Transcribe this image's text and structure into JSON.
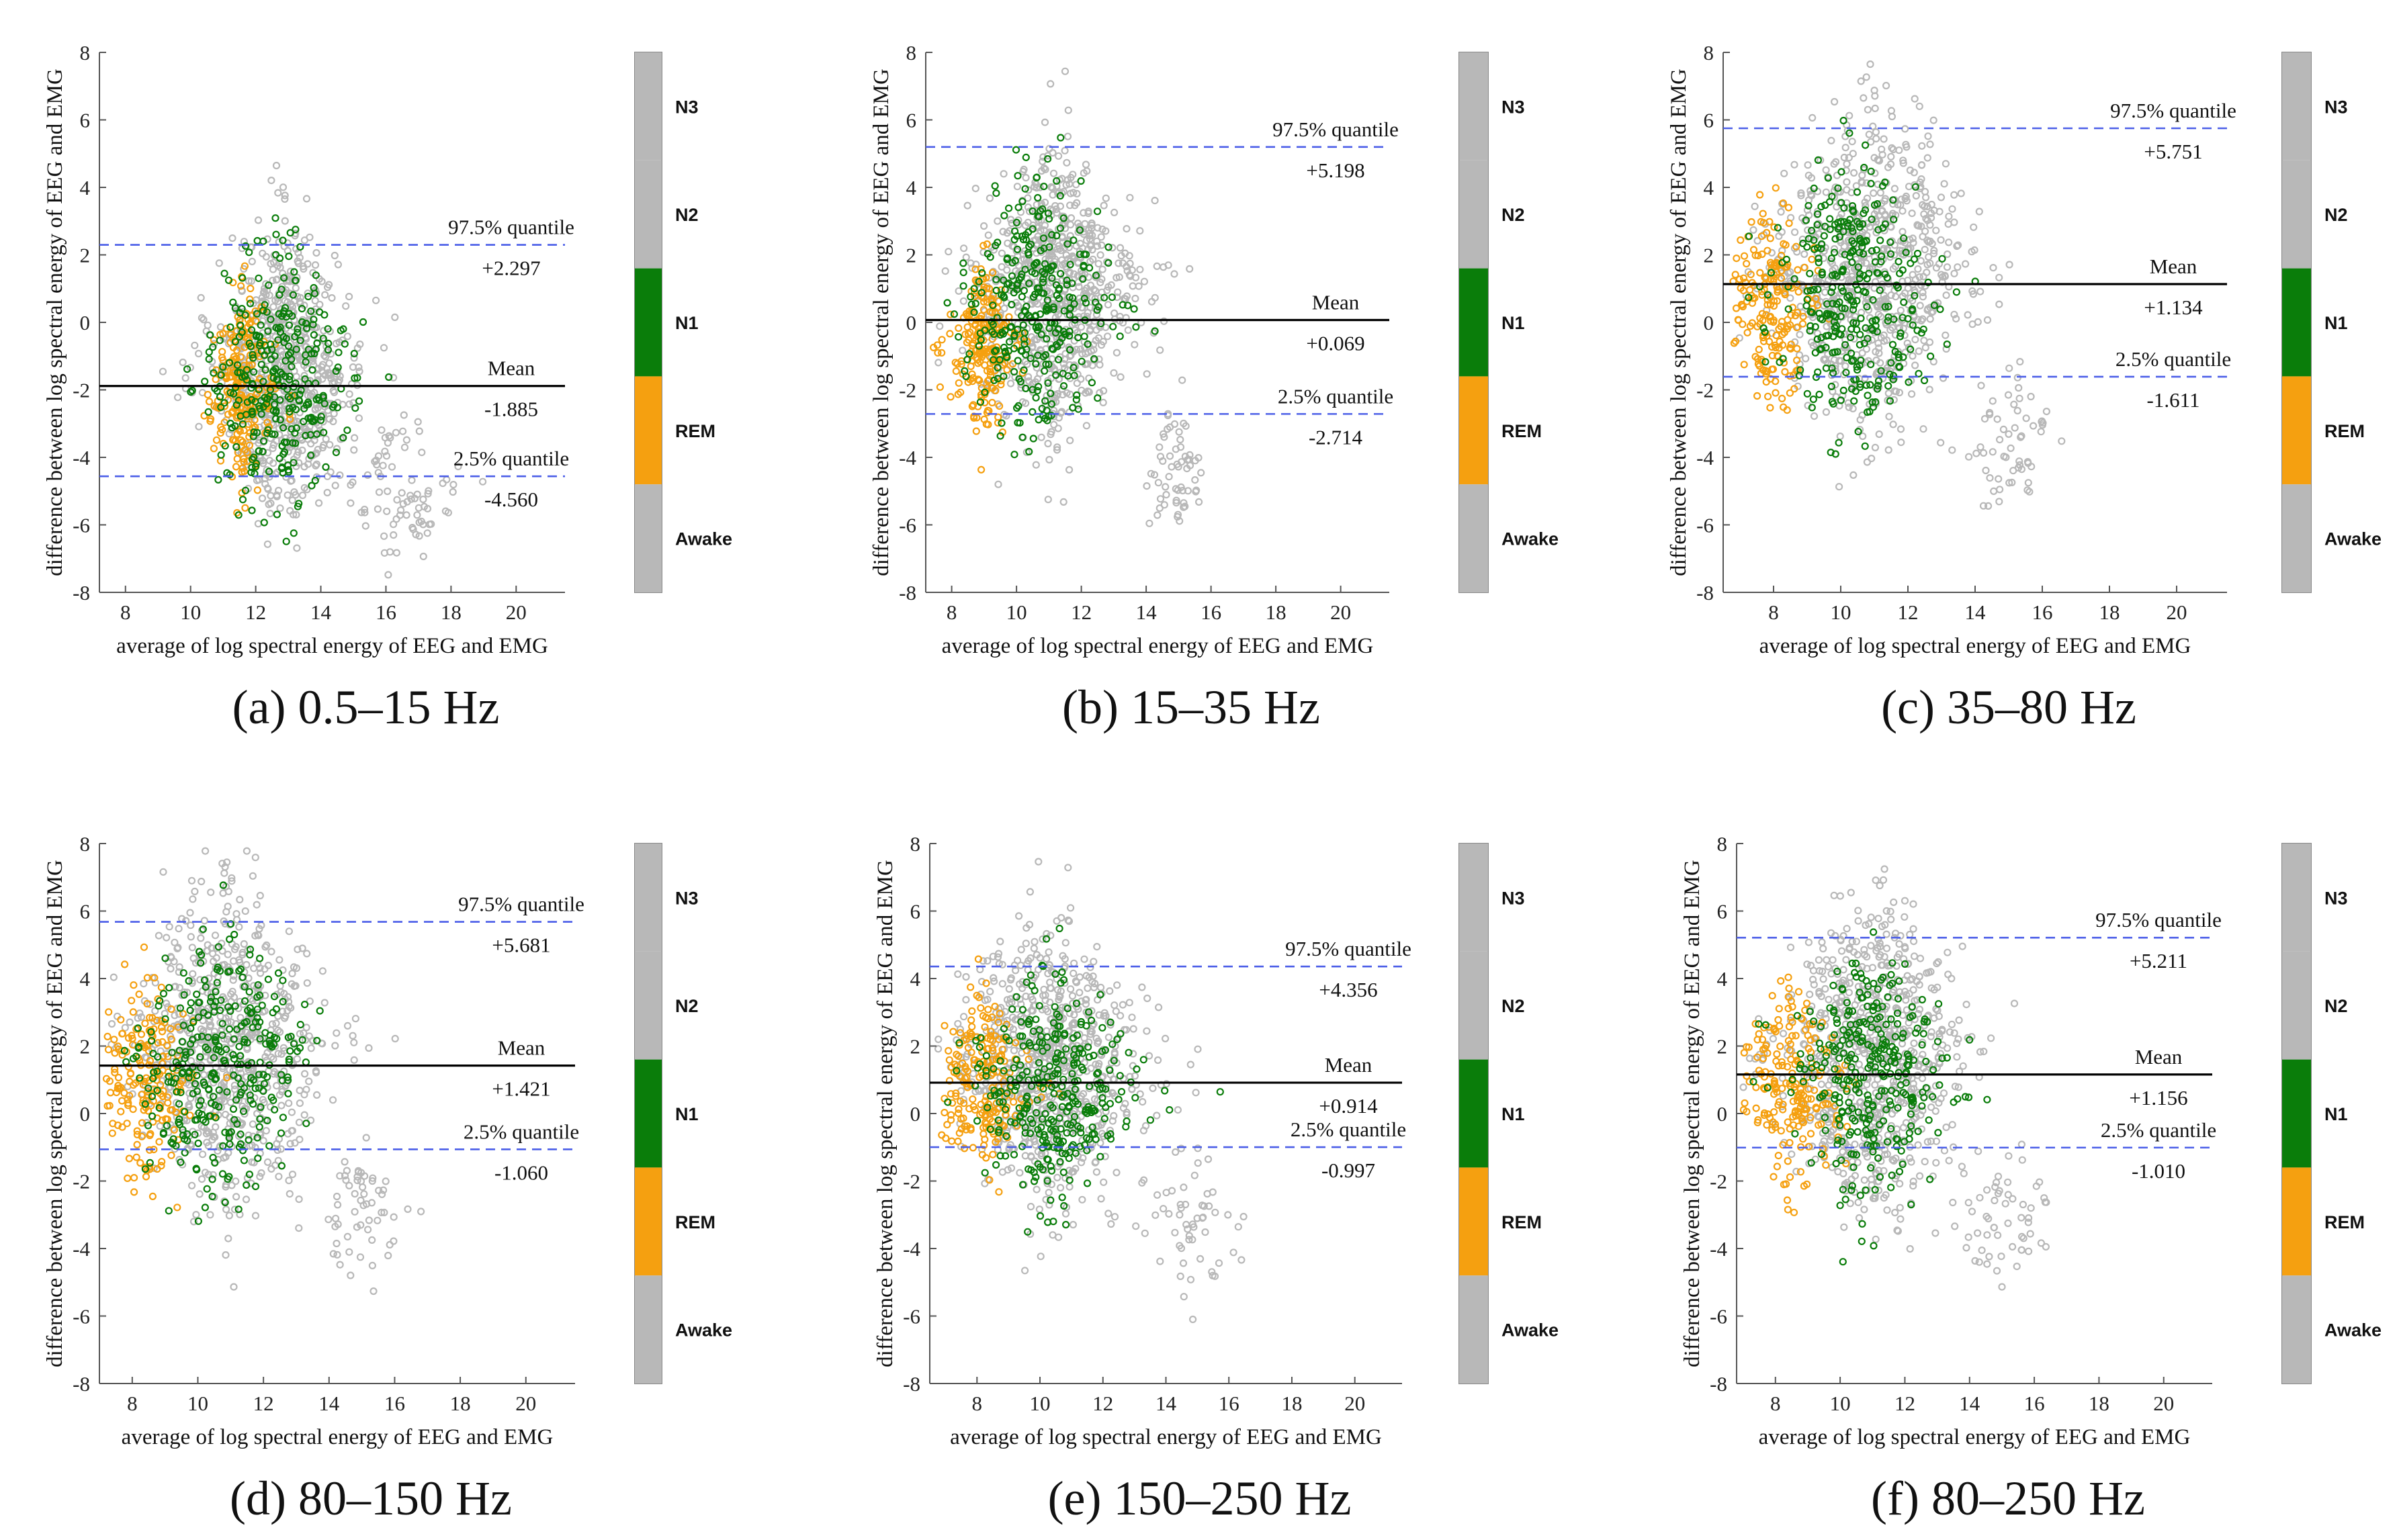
{
  "figure": {
    "colors": {
      "Awake": "#b8b8b8",
      "N3": "#b8b8b8",
      "N2": "#b8b8b8",
      "N1": "#0a7d0a",
      "REM": "#f5a010",
      "mean_line": "#000000",
      "quantile_line": "#4b5ee8",
      "axis": "#555555"
    }
  },
  "chart_data": [
    {
      "type": "scatter",
      "panel_id": "a",
      "caption": "(a) 0.5–15 Hz",
      "xlabel": "average of log spectral energy of EEG and EMG",
      "ylabel": "difference between log spectral energy of EEG and EMG",
      "xlim": [
        7.2,
        21.5
      ],
      "ylim": [
        -8,
        8
      ],
      "xticks": [
        "8",
        "10",
        "12",
        "14",
        "16",
        "18",
        "20"
      ],
      "yticks": [
        "-8",
        "-6",
        "-4",
        "-2",
        "0",
        "2",
        "4",
        "6",
        "8"
      ],
      "mean": {
        "label": "Mean",
        "value": -1.885,
        "value_text": "-1.885"
      },
      "upper": {
        "label": "97.5% quantile",
        "value": 2.297,
        "value_text": "+2.297"
      },
      "lower": {
        "label": "2.5% quantile",
        "value": -4.56,
        "value_text": "-4.560"
      },
      "colorbar": [
        "N3",
        "N2",
        "N1",
        "REM",
        "Awake"
      ],
      "clusters": [
        {
          "stage": "Awake",
          "n": 700,
          "cx": 12.9,
          "cy": -1.4,
          "sx": 1.3,
          "sy": 2.0
        },
        {
          "stage": "Awake",
          "n": 80,
          "cx": 16.6,
          "cy": -5.0,
          "sx": 0.9,
          "sy": 1.0
        },
        {
          "stage": "REM",
          "n": 220,
          "cx": 11.6,
          "cy": -2.0,
          "sx": 0.6,
          "sy": 1.3
        },
        {
          "stage": "N1",
          "n": 320,
          "cx": 12.7,
          "cy": -1.6,
          "sx": 1.3,
          "sy": 1.8
        }
      ]
    },
    {
      "type": "scatter",
      "panel_id": "b",
      "caption": "(b) 15–35 Hz",
      "xlabel": "average of log spectral energy of EEG and EMG",
      "ylabel": "difference between log spectral energy of EEG and EMG",
      "xlim": [
        7.2,
        21.5
      ],
      "ylim": [
        -8,
        8
      ],
      "xticks": [
        "8",
        "10",
        "12",
        "14",
        "16",
        "18",
        "20"
      ],
      "yticks": [
        "-8",
        "-6",
        "-4",
        "-2",
        "0",
        "2",
        "4",
        "6",
        "8"
      ],
      "mean": {
        "label": "Mean",
        "value": 0.069,
        "value_text": "+0.069"
      },
      "upper": {
        "label": "97.5% quantile",
        "value": 5.198,
        "value_text": "+5.198"
      },
      "lower": {
        "label": "2.5% quantile",
        "value": -2.714,
        "value_text": "-2.714"
      },
      "colorbar": [
        "N3",
        "N2",
        "N1",
        "REM",
        "Awake"
      ],
      "clusters": [
        {
          "stage": "Awake",
          "n": 700,
          "cx": 11.2,
          "cy": 0.8,
          "sx": 1.5,
          "sy": 2.0
        },
        {
          "stage": "Awake",
          "n": 60,
          "cx": 14.9,
          "cy": -4.3,
          "sx": 0.6,
          "sy": 1.0
        },
        {
          "stage": "REM",
          "n": 200,
          "cx": 9.0,
          "cy": -0.8,
          "sx": 0.6,
          "sy": 1.1
        },
        {
          "stage": "N1",
          "n": 320,
          "cx": 10.6,
          "cy": 0.5,
          "sx": 1.3,
          "sy": 1.8
        }
      ]
    },
    {
      "type": "scatter",
      "panel_id": "c",
      "caption": "(c) 35–80 Hz",
      "xlabel": "average of log spectral energy of EEG and EMG",
      "ylabel": "difference between log spectral energy of EEG and EMG",
      "xlim": [
        6.5,
        21.5
      ],
      "ylim": [
        -8,
        8
      ],
      "xticks": [
        "8",
        "10",
        "12",
        "14",
        "16",
        "18",
        "20"
      ],
      "yticks": [
        "-8",
        "-6",
        "-4",
        "-2",
        "0",
        "2",
        "4",
        "6",
        "8"
      ],
      "mean": {
        "label": "Mean",
        "value": 1.134,
        "value_text": "+1.134"
      },
      "upper": {
        "label": "97.5% quantile",
        "value": 5.751,
        "value_text": "+5.751"
      },
      "lower": {
        "label": "2.5% quantile",
        "value": -1.611,
        "value_text": "-1.611"
      },
      "colorbar": [
        "N3",
        "N2",
        "N1",
        "REM",
        "Awake"
      ],
      "clusters": [
        {
          "stage": "Awake",
          "n": 700,
          "cx": 10.8,
          "cy": 1.6,
          "sx": 1.7,
          "sy": 2.2
        },
        {
          "stage": "Awake",
          "n": 60,
          "cx": 15.0,
          "cy": -3.8,
          "sx": 0.9,
          "sy": 1.0
        },
        {
          "stage": "REM",
          "n": 200,
          "cx": 8.0,
          "cy": 0.6,
          "sx": 0.8,
          "sy": 1.3
        },
        {
          "stage": "N1",
          "n": 320,
          "cx": 10.4,
          "cy": 1.0,
          "sx": 1.4,
          "sy": 1.8
        }
      ]
    },
    {
      "type": "scatter",
      "panel_id": "d",
      "caption": "(d) 80–150 Hz",
      "xlabel": "average of log spectral energy of EEG and EMG",
      "ylabel": "difference between log spectral energy of EEG and EMG",
      "xlim": [
        7.0,
        21.5
      ],
      "ylim": [
        -8,
        8
      ],
      "xticks": [
        "8",
        "10",
        "12",
        "14",
        "16",
        "18",
        "20"
      ],
      "yticks": [
        "-8",
        "-6",
        "-4",
        "-2",
        "0",
        "2",
        "4",
        "6",
        "8"
      ],
      "mean": {
        "label": "Mean",
        "value": 1.421,
        "value_text": "+1.421"
      },
      "upper": {
        "label": "97.5% quantile",
        "value": 5.681,
        "value_text": "+5.681"
      },
      "lower": {
        "label": "2.5% quantile",
        "value": -1.06,
        "value_text": "-1.060"
      },
      "colorbar": [
        "N3",
        "N2",
        "N1",
        "REM",
        "Awake"
      ],
      "clusters": [
        {
          "stage": "Awake",
          "n": 700,
          "cx": 10.9,
          "cy": 2.0,
          "sx": 1.7,
          "sy": 2.1
        },
        {
          "stage": "Awake",
          "n": 60,
          "cx": 15.0,
          "cy": -3.2,
          "sx": 0.8,
          "sy": 1.0
        },
        {
          "stage": "REM",
          "n": 200,
          "cx": 8.4,
          "cy": 0.9,
          "sx": 0.9,
          "sy": 1.4
        },
        {
          "stage": "N1",
          "n": 320,
          "cx": 10.7,
          "cy": 1.4,
          "sx": 1.5,
          "sy": 1.8
        }
      ]
    },
    {
      "type": "scatter",
      "panel_id": "e",
      "caption": "(e) 150–250 Hz",
      "xlabel": "average of log spectral energy of EEG and EMG",
      "ylabel": "difference between log spectral energy of EEG and EMG",
      "xlim": [
        6.5,
        21.5
      ],
      "ylim": [
        -8,
        8
      ],
      "xticks": [
        "8",
        "10",
        "12",
        "14",
        "16",
        "18",
        "20"
      ],
      "yticks": [
        "-8",
        "-6",
        "-4",
        "-2",
        "0",
        "2",
        "4",
        "6",
        "8"
      ],
      "mean": {
        "label": "Mean",
        "value": 0.914,
        "value_text": "+0.914"
      },
      "upper": {
        "label": "97.5% quantile",
        "value": 4.356,
        "value_text": "+4.356"
      },
      "lower": {
        "label": "2.5% quantile",
        "value": -0.997,
        "value_text": "-0.997"
      },
      "colorbar": [
        "N3",
        "N2",
        "N1",
        "REM",
        "Awake"
      ],
      "clusters": [
        {
          "stage": "Awake",
          "n": 700,
          "cx": 10.2,
          "cy": 1.4,
          "sx": 1.8,
          "sy": 1.9
        },
        {
          "stage": "Awake",
          "n": 60,
          "cx": 14.6,
          "cy": -3.3,
          "sx": 0.9,
          "sy": 1.1
        },
        {
          "stage": "REM",
          "n": 200,
          "cx": 8.2,
          "cy": 1.0,
          "sx": 0.9,
          "sy": 1.2
        },
        {
          "stage": "N1",
          "n": 320,
          "cx": 10.3,
          "cy": 0.6,
          "sx": 1.5,
          "sy": 1.5
        }
      ]
    },
    {
      "type": "scatter",
      "panel_id": "f",
      "caption": "(f) 80–250 Hz",
      "xlabel": "average of log spectral energy of EEG and EMG",
      "ylabel": "difference between log spectral energy of EEG and EMG",
      "xlim": [
        6.8,
        21.5
      ],
      "ylim": [
        -8,
        8
      ],
      "xticks": [
        "8",
        "10",
        "12",
        "14",
        "16",
        "18",
        "20"
      ],
      "yticks": [
        "-8",
        "-6",
        "-4",
        "-2",
        "0",
        "2",
        "4",
        "6",
        "8"
      ],
      "mean": {
        "label": "Mean",
        "value": 1.156,
        "value_text": "+1.156"
      },
      "upper": {
        "label": "97.5% quantile",
        "value": 5.211,
        "value_text": "+5.211"
      },
      "lower": {
        "label": "2.5% quantile",
        "value": -1.01,
        "value_text": "-1.010"
      },
      "colorbar": [
        "N3",
        "N2",
        "N1",
        "REM",
        "Awake"
      ],
      "clusters": [
        {
          "stage": "Awake",
          "n": 700,
          "cx": 11.0,
          "cy": 1.8,
          "sx": 1.7,
          "sy": 2.1
        },
        {
          "stage": "Awake",
          "n": 60,
          "cx": 15.0,
          "cy": -3.2,
          "sx": 0.9,
          "sy": 1.0
        },
        {
          "stage": "REM",
          "n": 200,
          "cx": 8.5,
          "cy": 0.8,
          "sx": 0.9,
          "sy": 1.3
        },
        {
          "stage": "N1",
          "n": 320,
          "cx": 10.9,
          "cy": 1.1,
          "sx": 1.5,
          "sy": 1.7
        }
      ]
    }
  ]
}
